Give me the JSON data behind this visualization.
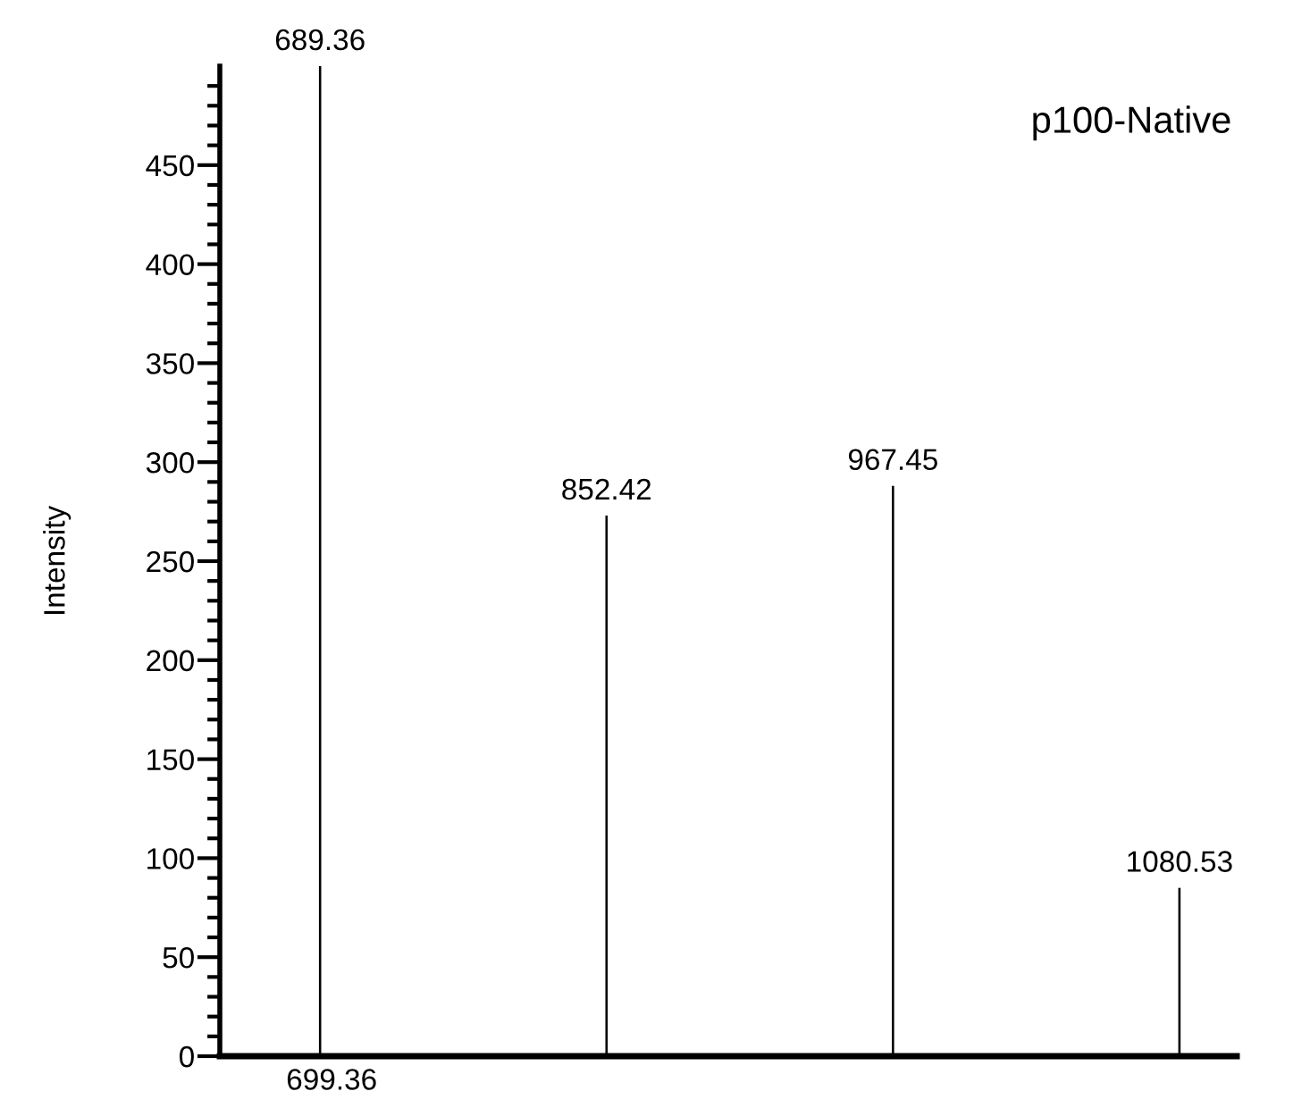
{
  "chart_data": {
    "type": "bar",
    "ylabel": "Intensity",
    "categories": [
      null,
      null,
      null,
      null
    ],
    "values": [
      500,
      273,
      288,
      85
    ],
    "color": "#000000",
    "ylim": [
      0,
      500
    ],
    "yticks": [
      0,
      {
        "value": 10,
        "label": null
      },
      {
        "value": 20,
        "label": null
      },
      {
        "value": 30,
        "label": null
      },
      {
        "value": 40,
        "label": null
      },
      50,
      {
        "value": 60,
        "label": null
      },
      {
        "value": 70,
        "label": null
      },
      {
        "value": 80,
        "label": null
      },
      {
        "value": 90,
        "label": null
      },
      100,
      {
        "value": 110,
        "label": null
      },
      {
        "value": 120,
        "label": null
      },
      {
        "value": 130,
        "label": null
      },
      {
        "value": 140,
        "label": null
      },
      150,
      {
        "value": 160,
        "label": null
      },
      {
        "value": 170,
        "label": null
      },
      {
        "value": 180,
        "label": null
      },
      {
        "value": 190,
        "label": null
      },
      200,
      {
        "value": 210,
        "label": null
      },
      {
        "value": 220,
        "label": null
      },
      {
        "value": 230,
        "label": null
      },
      {
        "value": 240,
        "label": null
      },
      250,
      {
        "value": 260,
        "label": null
      },
      {
        "value": 270,
        "label": null
      },
      {
        "value": 280,
        "label": null
      },
      {
        "value": 290,
        "label": null
      },
      300,
      {
        "value": 310,
        "label": null
      },
      {
        "value": 320,
        "label": null
      },
      {
        "value": 330,
        "label": null
      },
      {
        "value": 340,
        "label": null
      },
      350,
      {
        "value": 360,
        "label": null
      },
      {
        "value": 370,
        "label": null
      },
      {
        "value": 380,
        "label": null
      },
      {
        "value": 390,
        "label": null
      },
      400,
      {
        "value": 410,
        "label": null
      },
      {
        "value": 420,
        "label": null
      },
      {
        "value": 430,
        "label": null
      },
      {
        "value": 440,
        "label": null
      },
      450,
      {
        "value": 460,
        "label": null
      },
      {
        "value": 470,
        "label": null
      },
      {
        "value": 480,
        "label": null
      },
      {
        "value": 490,
        "label": null
      }
    ],
    "grid": false,
    "annotations": [
      {
        "text": "689.36",
        "y": 500
      },
      {
        "text": "852.42",
        "y": 273
      },
      {
        "text": "967.45",
        "y": 288
      },
      {
        "text": "1080.53",
        "y": 85
      },
      "699.36",
      "p100-Native"
    ]
  }
}
